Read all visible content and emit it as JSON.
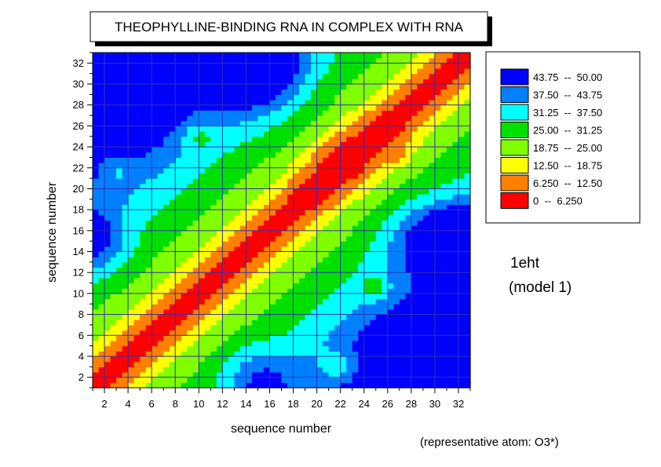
{
  "chart_data": {
    "type": "heatmap",
    "title": "THEOPHYLLINE-BINDING RNA IN COMPLEX WITH RNA",
    "xlabel": "sequence number",
    "ylabel": "sequence number",
    "xlim": [
      1,
      33
    ],
    "ylim": [
      1,
      33
    ],
    "xticks": [
      "2",
      "4",
      "6",
      "8",
      "10",
      "12",
      "14",
      "16",
      "18",
      "20",
      "22",
      "24",
      "26",
      "28",
      "30",
      "32"
    ],
    "yticks": [
      "2",
      "4",
      "6",
      "8",
      "10",
      "12",
      "14",
      "16",
      "18",
      "20",
      "22",
      "24",
      "26",
      "28",
      "30",
      "32"
    ],
    "xtick_values": [
      2,
      4,
      6,
      8,
      10,
      12,
      14,
      16,
      18,
      20,
      22,
      24,
      26,
      28,
      30,
      32
    ],
    "ytick_values": [
      2,
      4,
      6,
      8,
      10,
      12,
      14,
      16,
      18,
      20,
      22,
      24,
      26,
      28,
      30,
      32
    ],
    "grid": true,
    "legend_position": "right",
    "legend": [
      {
        "label": "43.75  --  50.00",
        "color": "#0000ff",
        "min": 43.75,
        "max": 50.0
      },
      {
        "label": "37.50  --  43.75",
        "color": "#0080ff",
        "min": 37.5,
        "max": 43.75
      },
      {
        "label": "31.25  --  37.50",
        "color": "#00ffff",
        "min": 31.25,
        "max": 37.5
      },
      {
        "label": "25.00  --  31.25",
        "color": "#00e000",
        "min": 25.0,
        "max": 31.25
      },
      {
        "label": "18.75  --  25.00",
        "color": "#80ff00",
        "min": 18.75,
        "max": 25.0
      },
      {
        "label": "12.50  --  18.75",
        "color": "#ffff00",
        "min": 12.5,
        "max": 18.75
      },
      {
        "label": "6.250  --  12.50",
        "color": "#ff8000",
        "min": 6.25,
        "max": 12.5
      },
      {
        "label": "0  --  6.250",
        "color": "#ff0000",
        "min": 0,
        "max": 6.25
      }
    ],
    "values_note_residues": [
      1,
      33
    ],
    "colors": {
      "grid": "#3030b0",
      "background": "#ffffff",
      "contour": "#000000"
    }
  },
  "annotations": {
    "id": "1eht",
    "model": "(model 1)",
    "atom": "(representative atom: O3*)"
  }
}
